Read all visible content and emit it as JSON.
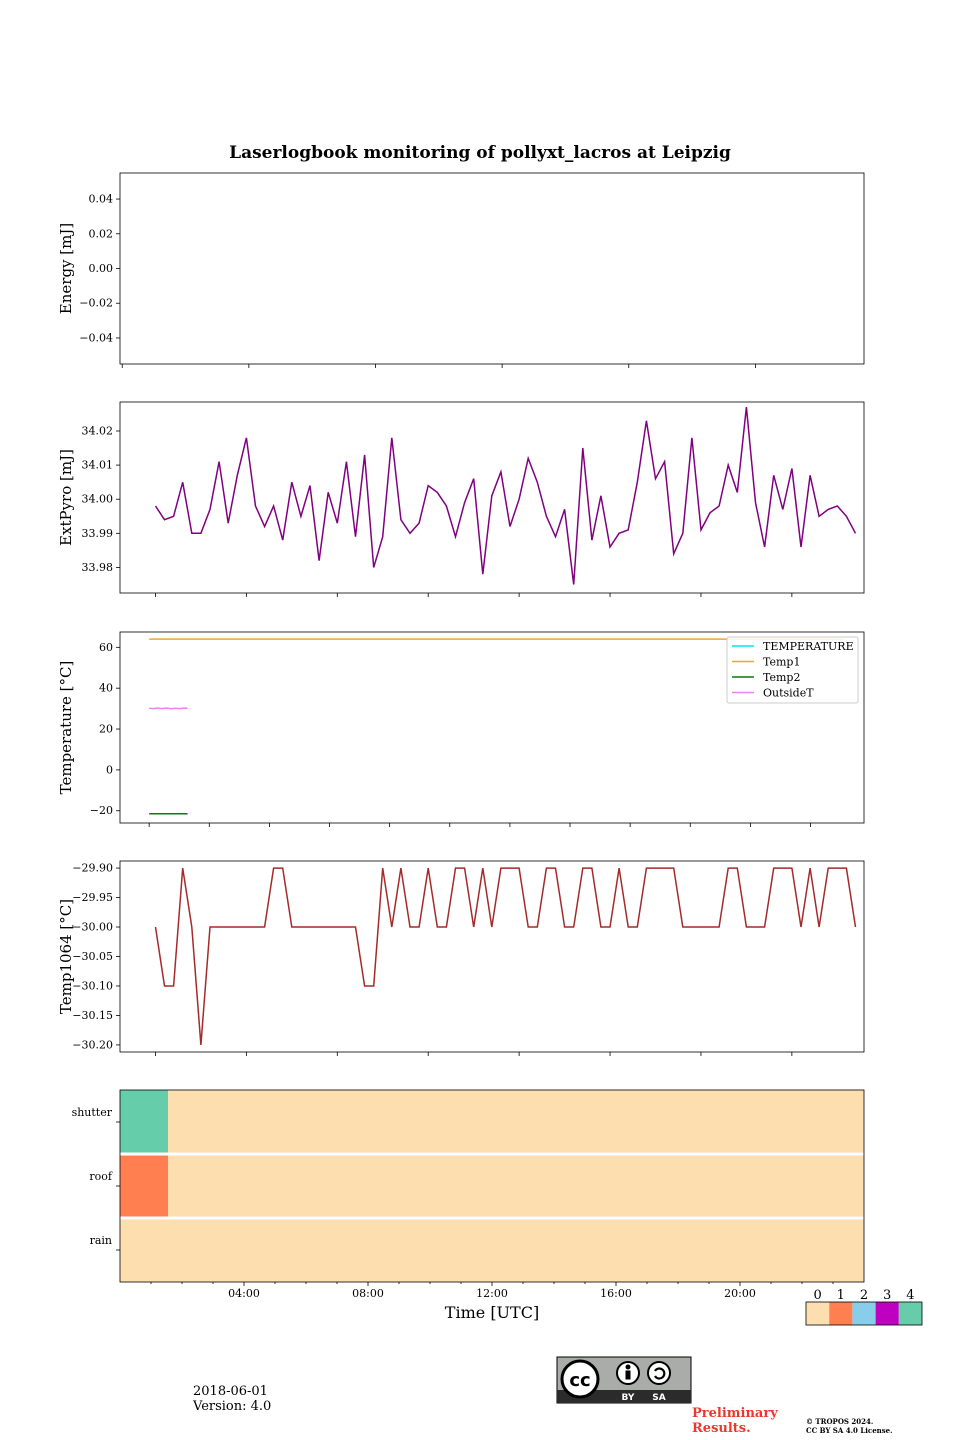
{
  "title": "Laserlogbook monitoring of pollyxt_lacros at Leipzig",
  "footer": {
    "date": "2018-06-01",
    "version": "Version: 4.0",
    "preliminary_line1": "Preliminary",
    "preliminary_line2": "Results.",
    "copyright_line1": "© TROPOS 2024.",
    "copyright_line2": "CC BY SA 4.0 License.",
    "license_badge": {
      "icon": "cc-by-sa-icon",
      "by": "BY",
      "sa": "SA"
    }
  },
  "chart_data": [
    {
      "type": "line",
      "id": "energy",
      "ylabel": "Energy [mJ]",
      "ylim": [
        -0.055,
        0.055
      ],
      "yticks": [
        0.04,
        0.02,
        0.0,
        -0.02,
        -0.04
      ],
      "ytick_labels": [
        "0.04",
        "0.02",
        "0.00",
        "−0.02",
        "−0.04"
      ],
      "xlim": [
        0,
        24
      ],
      "series": []
    },
    {
      "type": "line",
      "id": "extpyro",
      "ylabel": "ExtPyro [mJ]",
      "ylim": [
        33.9725,
        34.0285
      ],
      "yticks": [
        34.02,
        34.01,
        34.0,
        33.99,
        33.98
      ],
      "ytick_labels": [
        "34.02",
        "34.01",
        "34.00",
        "33.99",
        "33.98"
      ],
      "xlim": [
        0,
        24
      ],
      "series": [
        {
          "color": "#800080",
          "x": [
            1.17,
            1.47,
            1.77,
            2.07,
            2.37,
            2.67,
            2.97,
            3.27,
            3.57,
            3.87,
            4.17,
            4.47,
            4.77,
            5.07,
            5.37,
            5.67,
            5.97,
            6.27,
            6.57,
            6.87,
            7.17,
            7.47,
            7.77,
            8.07,
            8.37,
            8.67,
            8.97,
            9.27,
            9.57,
            9.87,
            10.17,
            10.47,
            10.77,
            11.07,
            11.37,
            11.67,
            11.97,
            12.27,
            12.57,
            12.87,
            13.17,
            13.47,
            13.77,
            14.07,
            14.37,
            14.67,
            14.97,
            15.27,
            15.57,
            15.87,
            16.17,
            16.47,
            16.77,
            17.07,
            17.37,
            17.67,
            17.97,
            18.27,
            18.57,
            18.87,
            19.17,
            19.47,
            19.77,
            20.07,
            20.37,
            20.67,
            20.97,
            21.27,
            21.57,
            21.87,
            22.17,
            22.47,
            22.77,
            23.07,
            23.37,
            23.67,
            23.97,
            24.27
          ],
          "y": [
            33.998,
            33.994,
            33.995,
            34.005,
            33.99,
            33.99,
            33.997,
            34.011,
            33.993,
            34.007,
            34.018,
            33.998,
            33.992,
            33.998,
            33.988,
            34.005,
            33.995,
            34.004,
            33.982,
            34.002,
            33.993,
            34.011,
            33.989,
            34.013,
            33.98,
            33.989,
            34.018,
            33.994,
            33.99,
            33.993,
            34.004,
            34.002,
            33.998,
            33.989,
            33.999,
            34.006,
            33.978,
            34.001,
            34.008,
            33.992,
            34.0,
            34.012,
            34.005,
            33.995,
            33.989,
            33.997,
            33.975,
            34.015,
            33.988,
            34.001,
            33.986,
            33.99,
            33.991,
            34.005,
            34.023,
            34.006,
            34.011,
            33.984,
            33.99,
            34.018,
            33.991,
            33.996,
            33.998,
            34.01,
            34.002,
            34.027,
            33.999,
            33.986,
            34.007,
            33.997,
            34.009,
            33.986,
            34.007,
            33.995,
            33.997,
            33.998,
            33.995,
            33.99
          ]
        }
      ]
    },
    {
      "type": "line",
      "id": "temperature",
      "ylabel": "Temperature [°C]",
      "ylim": [
        -26,
        67.5
      ],
      "yticks": [
        60,
        40,
        20,
        0,
        -20
      ],
      "ytick_labels": [
        "60",
        "40",
        "20",
        "0",
        "−20"
      ],
      "xlim": [
        0,
        24
      ],
      "legend": "top-right",
      "series": [
        {
          "name": "TEMPERATURE",
          "color": "#00e5ee",
          "x": [],
          "y": []
        },
        {
          "name": "Temp1",
          "color": "#f5a623",
          "x": [
            1.17,
            24.27
          ],
          "y": [
            64,
            64
          ]
        },
        {
          "name": "Temp2",
          "color": "#008000",
          "x": [
            1.17,
            2.45
          ],
          "y": [
            -21.5,
            -21.5
          ]
        },
        {
          "name": "OutsideT",
          "color": "#ee82ee",
          "x": [
            1.17,
            1.3,
            1.45,
            1.6,
            1.75,
            1.9,
            2.05,
            2.2,
            2.35,
            2.45
          ],
          "y": [
            30.2,
            29.9,
            30.3,
            30.0,
            30.3,
            29.9,
            30.2,
            30.0,
            30.3,
            30.1
          ]
        }
      ]
    },
    {
      "type": "line",
      "id": "temp1064",
      "ylabel": "Temp1064 [°C]",
      "ylim": [
        -30.212,
        -29.888
      ],
      "yticks": [
        -29.9,
        -29.95,
        -30.0,
        -30.05,
        -30.1,
        -30.15,
        -30.2
      ],
      "ytick_labels": [
        "−29.90",
        "−29.95",
        "−30.00",
        "−30.05",
        "−30.10",
        "−30.15",
        "−30.20"
      ],
      "xlim": [
        0,
        24
      ],
      "series": [
        {
          "color": "#a52a2a",
          "x": [
            1.17,
            1.47,
            1.77,
            2.07,
            2.37,
            2.67,
            2.97,
            3.27,
            3.57,
            3.87,
            4.17,
            4.47,
            4.77,
            5.07,
            5.37,
            5.67,
            5.97,
            6.27,
            6.57,
            6.87,
            7.17,
            7.47,
            7.77,
            8.07,
            8.37,
            8.67,
            8.97,
            9.27,
            9.57,
            9.87,
            10.17,
            10.47,
            10.77,
            11.07,
            11.37,
            11.67,
            11.97,
            12.27,
            12.57,
            12.87,
            13.17,
            13.47,
            13.77,
            14.07,
            14.37,
            14.67,
            14.97,
            15.27,
            15.57,
            15.87,
            16.17,
            16.47,
            16.77,
            17.07,
            17.37,
            17.67,
            17.97,
            18.27,
            18.57,
            18.87,
            19.17,
            19.47,
            19.77,
            20.07,
            20.37,
            20.67,
            20.97,
            21.27,
            21.57,
            21.87,
            22.17,
            22.47,
            22.77,
            23.07,
            23.37,
            23.67,
            23.97,
            24.27
          ],
          "y": [
            -30.0,
            -30.1,
            -30.1,
            -29.9,
            -30.0,
            -30.2,
            -30.0,
            -30.0,
            -30.0,
            -30.0,
            -30.0,
            -30.0,
            -30.0,
            -29.9,
            -29.9,
            -30.0,
            -30.0,
            -30.0,
            -30.0,
            -30.0,
            -30.0,
            -30.0,
            -30.0,
            -30.1,
            -30.1,
            -29.9,
            -30.0,
            -29.9,
            -30.0,
            -30.0,
            -29.9,
            -30.0,
            -30.0,
            -29.9,
            -29.9,
            -30.0,
            -29.9,
            -30.0,
            -29.9,
            -29.9,
            -29.9,
            -30.0,
            -30.0,
            -29.9,
            -29.9,
            -30.0,
            -30.0,
            -29.9,
            -29.9,
            -30.0,
            -30.0,
            -29.9,
            -30.0,
            -30.0,
            -29.9,
            -29.9,
            -29.9,
            -29.9,
            -30.0,
            -30.0,
            -30.0,
            -30.0,
            -30.0,
            -29.9,
            -29.9,
            -30.0,
            -30.0,
            -30.0,
            -29.9,
            -29.9,
            -29.9,
            -30.0,
            -29.9,
            -30.0,
            -29.9,
            -29.9,
            -29.9,
            -30.0
          ]
        }
      ]
    },
    {
      "type": "heatmap",
      "id": "status",
      "rows": [
        "shutter",
        "roof",
        "rain"
      ],
      "xlim": [
        0,
        24
      ],
      "xticks": [
        4,
        8,
        12,
        16,
        20
      ],
      "xtick_labels": [
        "04:00",
        "08:00",
        "12:00",
        "16:00",
        "20:00"
      ],
      "xlabel": "Time [UTC]",
      "segments": [
        {
          "row": "shutter",
          "from": 0,
          "to": 1.55,
          "level": 4
        },
        {
          "row": "shutter",
          "from": 1.55,
          "to": 24,
          "level": 0
        },
        {
          "row": "roof",
          "from": 0,
          "to": 1.55,
          "level": 1
        },
        {
          "row": "roof",
          "from": 1.55,
          "to": 24,
          "level": 0
        },
        {
          "row": "rain",
          "from": 0,
          "to": 24,
          "level": 0
        }
      ],
      "colorbar": {
        "levels": [
          "0",
          "1",
          "2",
          "3",
          "4"
        ],
        "colors": [
          "#fddeaf",
          "#ff7f50",
          "#87ceeb",
          "#c000c0",
          "#66cdaa"
        ]
      }
    }
  ]
}
